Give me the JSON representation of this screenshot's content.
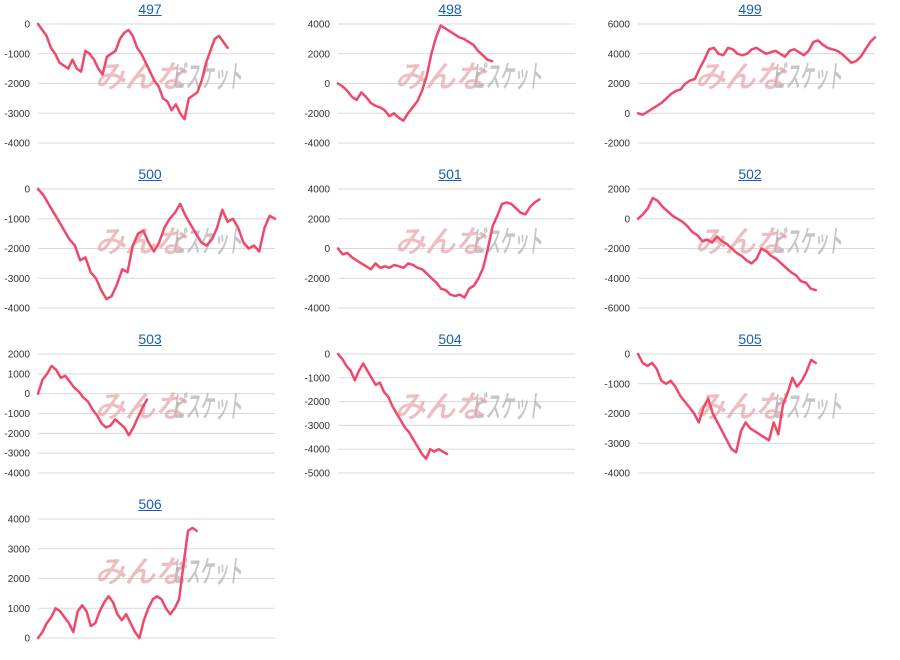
{
  "watermark": {
    "part1": "みんな",
    "part2": "ビスケット",
    "color1": "#e7a7ad",
    "color2": "#b3b3b3"
  },
  "line_color": "#f0486a",
  "link_color": "#1a5fb4",
  "chart_data": [
    {
      "type": "line",
      "title": "497",
      "ylim": [
        -4000,
        0
      ],
      "yticks": [
        0,
        -1000,
        -2000,
        -3000,
        -4000
      ],
      "values": [
        0,
        -200,
        -400,
        -800,
        -1000,
        -1300,
        -1400,
        -1500,
        -1200,
        -1500,
        -1600,
        -900,
        -1000,
        -1200,
        -1500,
        -1700,
        -1100,
        -1000,
        -900,
        -500,
        -300,
        -200,
        -400,
        -800,
        -1000,
        -1300,
        -1600,
        -1900,
        -2100,
        -2500,
        -2600,
        -2900,
        -2700,
        -3000,
        -3200,
        -2500,
        -2400,
        -2300,
        -1900,
        -1300,
        -900,
        -500,
        -400,
        -600,
        -800
      ]
    },
    {
      "type": "line",
      "title": "498",
      "ylim": [
        -4000,
        4000
      ],
      "yticks": [
        4000,
        2000,
        0,
        -2000,
        -4000
      ],
      "values": [
        0,
        -200,
        -500,
        -900,
        -1100,
        -600,
        -900,
        -1300,
        -1500,
        -1600,
        -1800,
        -2200,
        -2000,
        -2300,
        -2500,
        -2000,
        -1600,
        -1200,
        -500,
        500,
        2000,
        3100,
        3900,
        3700,
        3500,
        3300,
        3100,
        3000,
        2800,
        2600,
        2200,
        1900,
        1600,
        1500
      ]
    },
    {
      "type": "line",
      "title": "499",
      "ylim": [
        -2000,
        6000
      ],
      "yticks": [
        6000,
        4000,
        2000,
        0,
        -2000
      ],
      "values": [
        0,
        -100,
        100,
        300,
        500,
        700,
        1000,
        1300,
        1500,
        1600,
        2000,
        2200,
        2300,
        3000,
        3600,
        4300,
        4400,
        4000,
        3900,
        4400,
        4300,
        4000,
        3900,
        4000,
        4300,
        4400,
        4200,
        4000,
        4100,
        4200,
        4000,
        3800,
        4200,
        4300,
        4100,
        3900,
        4200,
        4800,
        4900,
        4600,
        4400,
        4300,
        4200,
        4000,
        3700,
        3400,
        3500,
        3800,
        4300,
        4800,
        5100
      ]
    },
    {
      "type": "line",
      "title": "500",
      "ylim": [
        -4000,
        0
      ],
      "yticks": [
        0,
        -1000,
        -2000,
        -3000,
        -4000
      ],
      "values": [
        0,
        -200,
        -500,
        -800,
        -1100,
        -1400,
        -1700,
        -1900,
        -2400,
        -2300,
        -2800,
        -3000,
        -3400,
        -3700,
        -3600,
        -3200,
        -2700,
        -2800,
        -1900,
        -1500,
        -1400,
        -1800,
        -2100,
        -1800,
        -1300,
        -1000,
        -800,
        -500,
        -900,
        -1200,
        -1500,
        -1800,
        -1900,
        -1700,
        -1300,
        -700,
        -1100,
        -1000,
        -1300,
        -1800,
        -2000,
        -1900,
        -2100,
        -1300,
        -900,
        -1000
      ]
    },
    {
      "type": "line",
      "title": "501",
      "ylim": [
        -4000,
        4000
      ],
      "yticks": [
        4000,
        2000,
        0,
        -2000,
        -4000
      ],
      "values": [
        0,
        -400,
        -300,
        -600,
        -800,
        -1000,
        -1200,
        -1400,
        -1000,
        -1300,
        -1200,
        -1300,
        -1100,
        -1200,
        -1300,
        -1000,
        -1100,
        -1300,
        -1400,
        -1700,
        -2000,
        -2300,
        -2700,
        -2800,
        -3100,
        -3200,
        -3100,
        -3300,
        -2700,
        -2500,
        -2000,
        -1300,
        0,
        1500,
        2200,
        3000,
        3100,
        3000,
        2700,
        2400,
        2300,
        2800,
        3100,
        3300
      ]
    },
    {
      "type": "line",
      "title": "502",
      "ylim": [
        -6000,
        2000
      ],
      "yticks": [
        2000,
        0,
        -2000,
        -4000,
        -6000
      ],
      "values": [
        0,
        300,
        700,
        1400,
        1200,
        800,
        500,
        200,
        0,
        -200,
        -500,
        -900,
        -1100,
        -1500,
        -1400,
        -1600,
        -1200,
        -1500,
        -1700,
        -2000,
        -2300,
        -2500,
        -2800,
        -3000,
        -2700,
        -2000,
        -2200,
        -2500,
        -2700,
        -3000,
        -3300,
        -3600,
        -3800,
        -4200,
        -4300,
        -4700,
        -4800
      ]
    },
    {
      "type": "line",
      "title": "503",
      "ylim": [
        -4000,
        2000
      ],
      "yticks": [
        2000,
        1000,
        0,
        -1000,
        -2000,
        -3000,
        -4000
      ],
      "values": [
        0,
        700,
        1000,
        1400,
        1200,
        800,
        900,
        600,
        300,
        100,
        -200,
        -400,
        -800,
        -1100,
        -1500,
        -1700,
        -1600,
        -1300,
        -1500,
        -1700,
        -2100,
        -1700,
        -1200,
        -700,
        -300
      ]
    },
    {
      "type": "line",
      "title": "504",
      "ylim": [
        -5000,
        0
      ],
      "yticks": [
        0,
        -1000,
        -2000,
        -3000,
        -4000,
        -5000
      ],
      "values": [
        0,
        -200,
        -500,
        -700,
        -1100,
        -700,
        -400,
        -700,
        -1000,
        -1300,
        -1200,
        -1600,
        -1800,
        -2200,
        -2500,
        -2800,
        -3100,
        -3300,
        -3600,
        -3900,
        -4200,
        -4400,
        -4000,
        -4100,
        -4000,
        -4100,
        -4200
      ]
    },
    {
      "type": "line",
      "title": "505",
      "ylim": [
        -4000,
        0
      ],
      "yticks": [
        0,
        -1000,
        -2000,
        -3000,
        -4000
      ],
      "values": [
        0,
        -300,
        -400,
        -300,
        -500,
        -900,
        -1000,
        -900,
        -1100,
        -1400,
        -1600,
        -1800,
        -2000,
        -2300,
        -1800,
        -1500,
        -2000,
        -2300,
        -2600,
        -2900,
        -3200,
        -3300,
        -2600,
        -2300,
        -2500,
        -2600,
        -2700,
        -2800,
        -2900,
        -2300,
        -2700,
        -1700,
        -1300,
        -800,
        -1100,
        -900,
        -600,
        -200,
        -300
      ]
    },
    {
      "type": "line",
      "title": "506",
      "ylim": [
        0,
        4000
      ],
      "yticks": [
        4000,
        3000,
        2000,
        1000,
        0
      ],
      "values": [
        0,
        200,
        500,
        700,
        1000,
        900,
        700,
        500,
        200,
        900,
        1100,
        900,
        400,
        500,
        900,
        1200,
        1400,
        1200,
        800,
        600,
        800,
        500,
        200,
        0,
        600,
        1000,
        1300,
        1400,
        1300,
        1000,
        800,
        1000,
        1300,
        2500,
        3600,
        3700,
        3600
      ]
    }
  ]
}
